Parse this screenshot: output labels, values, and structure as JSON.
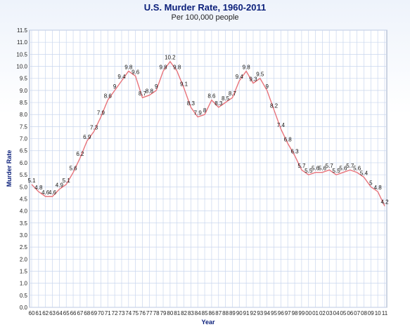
{
  "chart_data": {
    "type": "line",
    "title": "U.S. Murder Rate, 1960-2011",
    "subtitle": "Per 100,000 people",
    "xlabel": "Year",
    "ylabel": "Murder Rate",
    "ylim": [
      0,
      11.5
    ],
    "ytick_step": 0.5,
    "grid": true,
    "categories": [
      "60",
      "61",
      "62",
      "63",
      "64",
      "65",
      "66",
      "67",
      "68",
      "69",
      "70",
      "71",
      "72",
      "73",
      "74",
      "75",
      "76",
      "77",
      "78",
      "79",
      "80",
      "81",
      "82",
      "83",
      "84",
      "85",
      "86",
      "87",
      "88",
      "89",
      "90",
      "91",
      "92",
      "93",
      "94",
      "95",
      "96",
      "97",
      "98",
      "99",
      "00",
      "01",
      "02",
      "03",
      "04",
      "05",
      "06",
      "07",
      "08",
      "09",
      "10",
      "11"
    ],
    "series": [
      {
        "values": [
          5.1,
          4.8,
          4.6,
          4.6,
          4.9,
          5.1,
          5.6,
          6.2,
          6.9,
          7.3,
          7.9,
          8.6,
          9.0,
          9.4,
          9.8,
          9.6,
          8.7,
          8.8,
          9.0,
          9.8,
          10.2,
          9.8,
          9.1,
          8.3,
          7.9,
          8.0,
          8.6,
          8.3,
          8.5,
          8.7,
          9.4,
          9.8,
          9.3,
          9.5,
          9.0,
          8.2,
          7.4,
          6.8,
          6.3,
          5.7,
          5.5,
          5.6,
          5.6,
          5.7,
          5.5,
          5.6,
          5.7,
          5.6,
          5.4,
          5.0,
          4.8,
          4.2
        ],
        "labels": [
          "5.1",
          "4.8",
          "4.6",
          "4.6",
          "4.9",
          "5.1",
          "5.6",
          "6.2",
          "6.9",
          "7.3",
          "7.9",
          "8.6",
          "9",
          "9.4",
          "9.8",
          "9.6",
          "8.7",
          "8.8",
          "9",
          "9.8",
          "10.2",
          "9.8",
          "9.1",
          "8.3",
          "7.9",
          "8",
          "8.6",
          "8.3",
          "8.5",
          "8.7",
          "9.4",
          "9.8",
          "9.3",
          "9.5",
          "9",
          "8.2",
          "7.4",
          "6.8",
          "6.3",
          "5.7",
          "5.5",
          "5.6",
          "5.6",
          "5.7",
          "5.5",
          "5.6",
          "5.7",
          "5.6",
          "5.4",
          "5",
          "4.8",
          "4.2"
        ],
        "color": "#e8737a"
      }
    ]
  },
  "colors": {
    "line": "#e8737a",
    "grid": "#c9d6ee",
    "title": "#0a1f7a"
  }
}
